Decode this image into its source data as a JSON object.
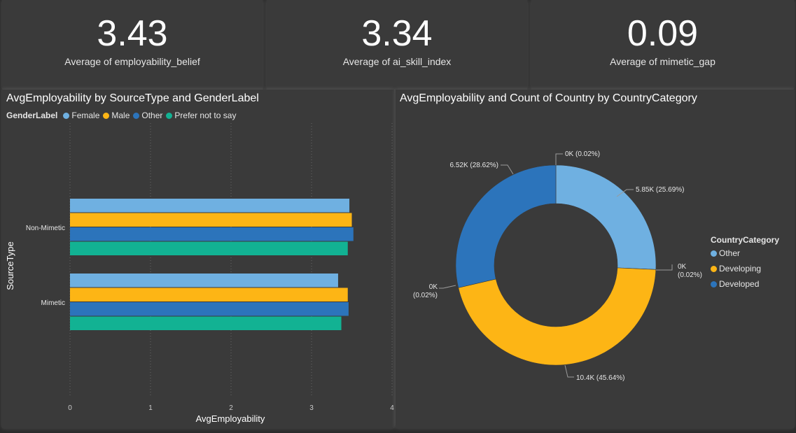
{
  "kpis": [
    {
      "value": "3.43",
      "label": "Average of employability_belief"
    },
    {
      "value": "3.34",
      "label": "Average of ai_skill_index"
    },
    {
      "value": "0.09",
      "label": "Average of mimetic_gap"
    }
  ],
  "colors": {
    "background": "#2b2b2b",
    "card": "#3a3a3a",
    "female": "#6fb0e1",
    "male": "#fdb515",
    "other": "#2c74bb",
    "prefer_not": "#12b293",
    "developed": "#2c74bb",
    "developing": "#fdb515",
    "cat_other": "#6fb0e1"
  },
  "bar_chart": {
    "title": "AvgEmployability by SourceType and GenderLabel",
    "legend_title": "GenderLabel",
    "xlabel": "AvgEmployability",
    "ylabel": "SourceType"
  },
  "donut_chart": {
    "title": "AvgEmployability and Count of Country by CountryCategory",
    "legend_title": "CountryCategory"
  },
  "chart_data": [
    {
      "type": "bar",
      "orientation": "horizontal",
      "title": "AvgEmployability by SourceType and GenderLabel",
      "xlabel": "AvgEmployability",
      "ylabel": "SourceType",
      "categories": [
        "Non-Mimetic",
        "Mimetic"
      ],
      "series": [
        {
          "name": "Female",
          "values": [
            3.47,
            3.33
          ]
        },
        {
          "name": "Male",
          "values": [
            3.5,
            3.45
          ]
        },
        {
          "name": "Other",
          "values": [
            3.52,
            3.46
          ]
        },
        {
          "name": "Prefer not to say",
          "values": [
            3.45,
            3.37
          ]
        }
      ],
      "xlim": [
        0,
        4
      ],
      "xticks": [
        "0",
        "1",
        "2",
        "3",
        "4"
      ],
      "grid": true,
      "legend": "top-left"
    },
    {
      "type": "pie",
      "variant": "donut",
      "title": "AvgEmployability and Count of Country by CountryCategory",
      "slices": [
        {
          "name": "Other",
          "value": 5.85,
          "percent": 25.69,
          "label": "5.85K (25.69%)"
        },
        {
          "name": "Developing",
          "value": 10.4,
          "percent": 45.64,
          "label": "10.4K (45.64%)"
        },
        {
          "name": "Developed",
          "value": 6.52,
          "percent": 28.62,
          "label": "6.52K (28.62%)"
        }
      ],
      "small_labels": [
        {
          "name": "top",
          "label": "0K (0.02%)"
        },
        {
          "name": "right",
          "line1": "0K",
          "line2": "(0.02%)"
        },
        {
          "name": "left",
          "line1": "0K",
          "line2": "(0.02%)"
        }
      ],
      "legend": "right"
    }
  ]
}
